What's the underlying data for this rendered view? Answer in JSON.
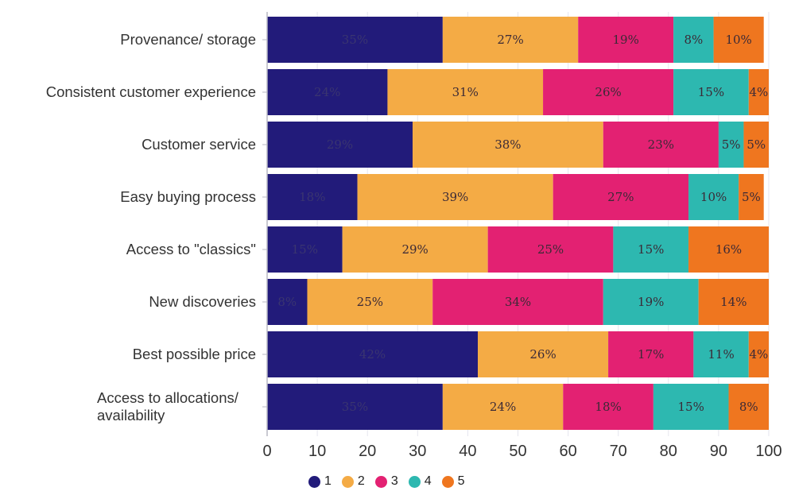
{
  "chart_data": {
    "type": "bar",
    "orientation": "horizontal",
    "stacked": true,
    "title": "",
    "xlabel": "",
    "ylabel": "",
    "xlim": [
      0,
      100
    ],
    "x_ticks": [
      "0",
      "10",
      "20",
      "30",
      "40",
      "50",
      "60",
      "70",
      "80",
      "90",
      "100"
    ],
    "grid": true,
    "legend_position": "bottom-center",
    "categories": [
      "Provenance/ storage",
      "Consistent customer experience",
      "Customer service",
      "Easy buying process",
      "Access to \"classics\"",
      "New discoveries",
      "Best possible price",
      "Access to allocations/ availability"
    ],
    "category_lines": [
      [
        "Provenance/ storage"
      ],
      [
        "Consistent customer experience"
      ],
      [
        "Customer service"
      ],
      [
        "Easy buying process"
      ],
      [
        "Access to \"classics\""
      ],
      [
        "New discoveries"
      ],
      [
        "Best possible price"
      ],
      [
        "Access to allocations/",
        "availability"
      ]
    ],
    "series": [
      {
        "name": "1",
        "color": "#221b7a",
        "values": [
          35,
          24,
          29,
          18,
          15,
          8,
          42,
          35
        ],
        "labels": [
          "35%",
          "24%",
          "29%",
          "18%",
          "15%",
          "8%",
          "42%",
          "35%"
        ]
      },
      {
        "name": "2",
        "color": "#f4ab45",
        "values": [
          27,
          31,
          38,
          39,
          29,
          25,
          26,
          24
        ],
        "labels": [
          "27%",
          "31%",
          "38%",
          "39%",
          "29%",
          "25%",
          "26%",
          "24%"
        ]
      },
      {
        "name": "3",
        "color": "#e32172",
        "values": [
          19,
          26,
          23,
          27,
          25,
          34,
          17,
          18
        ],
        "labels": [
          "19%",
          "26%",
          "23%",
          "27%",
          "25%",
          "34%",
          "17%",
          "18%"
        ]
      },
      {
        "name": "4",
        "color": "#2db8b0",
        "values": [
          8,
          15,
          5,
          10,
          15,
          19,
          11,
          15
        ],
        "labels": [
          "8%",
          "15%",
          "5%",
          "10%",
          "15%",
          "19%",
          "11%",
          "15%"
        ]
      },
      {
        "name": "5",
        "color": "#ef761f",
        "values": [
          10,
          4,
          5,
          5,
          16,
          14,
          4,
          8
        ],
        "labels": [
          "10%",
          "4%",
          "5%",
          "5%",
          "16%",
          "14%",
          "4%",
          "8%"
        ]
      }
    ]
  },
  "legend": {
    "items": [
      {
        "label": "1",
        "color": "#221b7a"
      },
      {
        "label": "2",
        "color": "#f4ab45"
      },
      {
        "label": "3",
        "color": "#e32172"
      },
      {
        "label": "4",
        "color": "#2db8b0"
      },
      {
        "label": "5",
        "color": "#ef761f"
      }
    ]
  }
}
